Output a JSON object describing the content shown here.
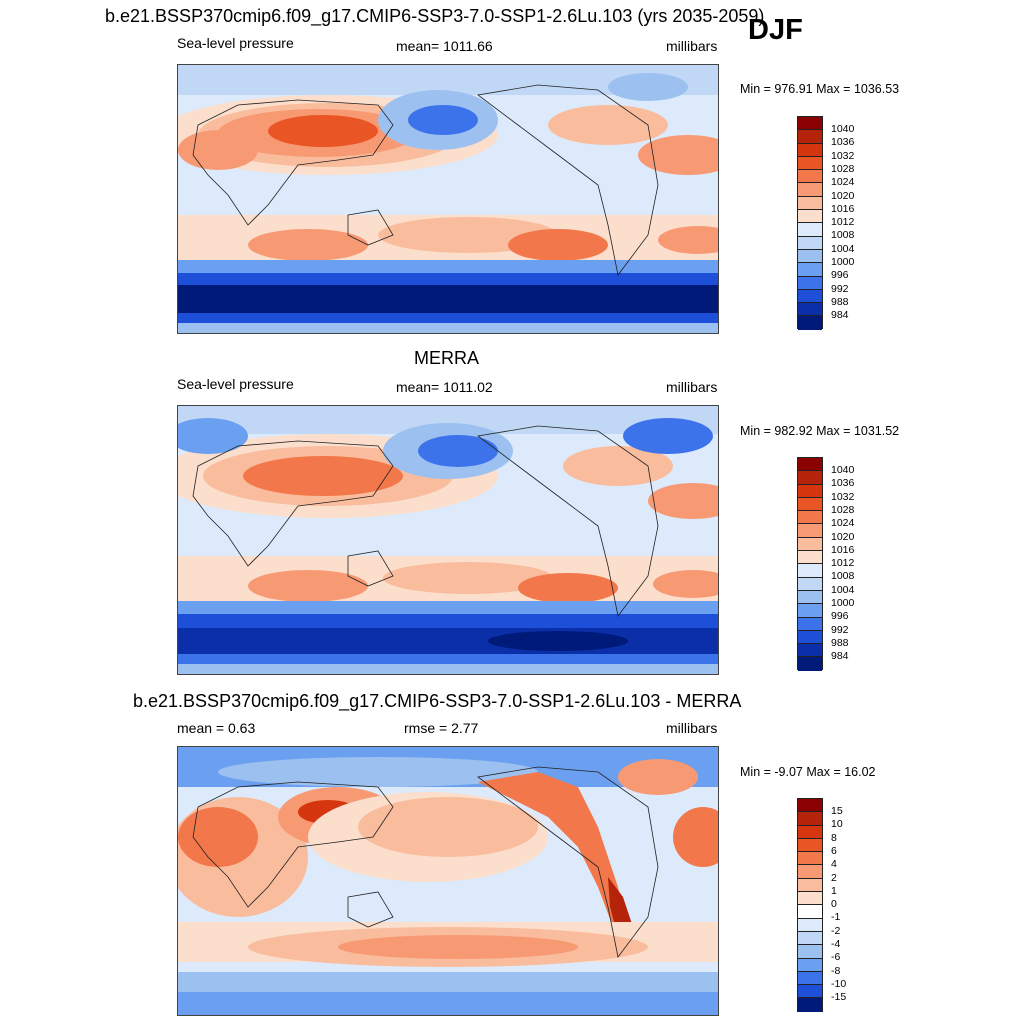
{
  "djf_label": "DJF",
  "panels": [
    {
      "title": "b.e21.BSSP370cmip6.f09_g17.CMIP6-SSP3-7.0-SSP1-2.6Lu.103 (yrs 2035-2059)",
      "left_label": "Sea-level pressure",
      "center_label": "mean= 1011.66",
      "right_label": "millibars",
      "minmax": "Min = 976.91 Max = 1036.53",
      "colorbar_labels": [
        "1040",
        "1036",
        "1032",
        "1028",
        "1024",
        "1020",
        "1016",
        "1012",
        "1008",
        "1004",
        "1000",
        "996",
        "992",
        "988",
        "984"
      ]
    },
    {
      "title": "MERRA",
      "left_label": "Sea-level pressure",
      "center_label": "mean= 1011.02",
      "right_label": "millibars",
      "minmax": "Min = 982.92 Max = 1031.52",
      "colorbar_labels": [
        "1040",
        "1036",
        "1032",
        "1028",
        "1024",
        "1020",
        "1016",
        "1012",
        "1008",
        "1004",
        "1000",
        "996",
        "992",
        "988",
        "984"
      ]
    },
    {
      "title": "b.e21.BSSP370cmip6.f09_g17.CMIP6-SSP3-7.0-SSP1-2.6Lu.103 - MERRA",
      "left_label": "mean =   0.63",
      "center_label": "rmse =   2.77",
      "right_label": "millibars",
      "minmax": "Min =  -9.07 Max =  16.02",
      "colorbar_labels": [
        "15",
        "10",
        "8",
        "6",
        "4",
        "2",
        "1",
        "0",
        "-1",
        "-2",
        "-4",
        "-6",
        "-8",
        "-10",
        "-15"
      ]
    }
  ],
  "colors": {
    "pressure_scale": [
      "#8b0000",
      "#b5230a",
      "#d6360f",
      "#ea5526",
      "#f2774a",
      "#f79a73",
      "#f9bd9e",
      "#fbdecb",
      "#ddeafb",
      "#c0d8f6",
      "#9cc1f1",
      "#6b9ff0",
      "#3c73ea",
      "#1d4fd8",
      "#0a2fa8",
      "#001a7a"
    ],
    "diff_scale": [
      "#8b0000",
      "#b5230a",
      "#d6360f",
      "#ea5526",
      "#f2774a",
      "#f79a73",
      "#f9bd9e",
      "#fbdecb",
      "#ffffff",
      "#ddeafb",
      "#c0d8f6",
      "#9cc1f1",
      "#6b9ff0",
      "#3c73ea",
      "#1d4fd8",
      "#001a7a"
    ]
  }
}
